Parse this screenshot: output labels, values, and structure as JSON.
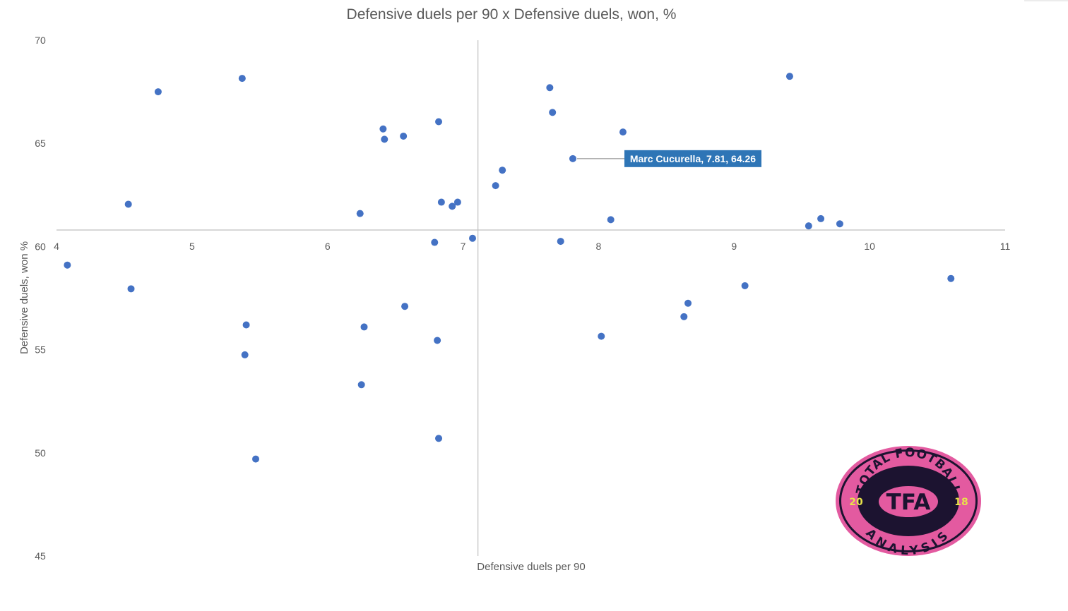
{
  "chart_data": {
    "type": "scatter",
    "title": "Defensive duels per 90 x Defensive duels, won, %",
    "xlabel": "Defensive duels per 90",
    "ylabel": "Defensive duels, won %",
    "xlim": [
      4,
      11
    ],
    "ylim": [
      45,
      70
    ],
    "x_ticks": [
      "4",
      "5",
      "6",
      "7",
      "8",
      "9",
      "10",
      "11"
    ],
    "y_ticks": [
      "45",
      "50",
      "55",
      "60",
      "65",
      "70"
    ],
    "x_axis_crosses_y_at": 60.8,
    "y_axis_crosses_x_at": 7.11,
    "grid": false,
    "marker_color": "#4472c4",
    "points": [
      {
        "x": 4.08,
        "y": 59.1
      },
      {
        "x": 4.53,
        "y": 62.05
      },
      {
        "x": 4.55,
        "y": 57.95
      },
      {
        "x": 4.75,
        "y": 67.5
      },
      {
        "x": 5.37,
        "y": 68.15
      },
      {
        "x": 5.39,
        "y": 54.75
      },
      {
        "x": 5.4,
        "y": 56.2
      },
      {
        "x": 5.47,
        "y": 49.7
      },
      {
        "x": 6.24,
        "y": 61.6
      },
      {
        "x": 6.25,
        "y": 53.3
      },
      {
        "x": 6.27,
        "y": 56.1
      },
      {
        "x": 6.41,
        "y": 65.7
      },
      {
        "x": 6.42,
        "y": 65.2
      },
      {
        "x": 6.56,
        "y": 65.35
      },
      {
        "x": 6.57,
        "y": 57.1
      },
      {
        "x": 6.79,
        "y": 60.2
      },
      {
        "x": 6.81,
        "y": 55.45
      },
      {
        "x": 6.82,
        "y": 66.05
      },
      {
        "x": 6.82,
        "y": 50.7
      },
      {
        "x": 6.84,
        "y": 62.15
      },
      {
        "x": 6.92,
        "y": 61.95
      },
      {
        "x": 6.96,
        "y": 62.15
      },
      {
        "x": 7.07,
        "y": 60.4
      },
      {
        "x": 7.24,
        "y": 62.95
      },
      {
        "x": 7.29,
        "y": 63.7
      },
      {
        "x": 7.64,
        "y": 67.7
      },
      {
        "x": 7.66,
        "y": 66.5
      },
      {
        "x": 7.72,
        "y": 60.25
      },
      {
        "x": 7.81,
        "y": 64.26,
        "label": "Marc Cucurella, 7.81, 64.26"
      },
      {
        "x": 8.02,
        "y": 55.65
      },
      {
        "x": 8.09,
        "y": 61.3
      },
      {
        "x": 8.18,
        "y": 65.55
      },
      {
        "x": 8.63,
        "y": 56.6
      },
      {
        "x": 8.66,
        "y": 57.25
      },
      {
        "x": 9.08,
        "y": 58.1
      },
      {
        "x": 9.41,
        "y": 68.25
      },
      {
        "x": 9.55,
        "y": 61.0
      },
      {
        "x": 9.64,
        "y": 61.35
      },
      {
        "x": 9.78,
        "y": 61.1
      },
      {
        "x": 10.6,
        "y": 58.45
      }
    ]
  },
  "logo": {
    "top_text": "TOTAL FOOTBALL",
    "bottom_text": "ANALYSIS",
    "center_text": "TFA",
    "year_left": "20",
    "year_right": "18",
    "ring_color": "#e35aa0",
    "background_color": "#1c1330",
    "accent_color": "#e8e24a"
  }
}
